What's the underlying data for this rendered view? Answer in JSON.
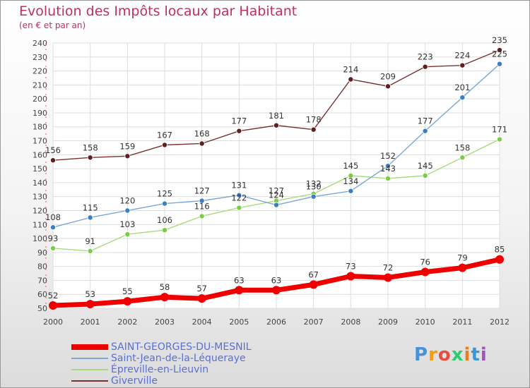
{
  "title": "Evolution des Impôts locaux par Habitant",
  "subtitle": "(en € et par an)",
  "logo": {
    "text": "Proxiti",
    "letters": [
      "P",
      "r",
      "o",
      "x",
      "i",
      "t",
      "i"
    ],
    "colors": [
      "#4a90d9",
      "#f39c12",
      "#e74c3c",
      "#2ecc71",
      "#e67e22",
      "#3498db",
      "#9b59b6"
    ]
  },
  "chart_data": {
    "type": "line",
    "title": "Evolution des Impôts locaux par Habitant",
    "subtitle": "(en € et par an)",
    "xlabel": "",
    "ylabel": "",
    "x": [
      "2000",
      "2001",
      "2002",
      "2003",
      "2004",
      "2005",
      "2006",
      "2007",
      "2008",
      "2009",
      "2010",
      "2011",
      "2012"
    ],
    "ylim": [
      50,
      240
    ],
    "yticks": [
      50,
      60,
      70,
      80,
      90,
      100,
      110,
      120,
      130,
      140,
      150,
      160,
      170,
      180,
      190,
      200,
      210,
      220,
      230,
      240
    ],
    "grid": true,
    "legend_position": "bottom-left",
    "series": [
      {
        "name": "SAINT-GEORGES-DU-MESNIL",
        "color": "#ee0000",
        "marker": "#ee0000",
        "values": [
          52,
          53,
          55,
          58,
          57,
          63,
          63,
          67,
          73,
          72,
          76,
          79,
          85
        ]
      },
      {
        "name": "Saint-Jean-de-la-Léqueraye",
        "color": "#7aa7d6",
        "marker": "#3a7fc4",
        "values": [
          108,
          115,
          120,
          125,
          127,
          131,
          124,
          130,
          134,
          152,
          177,
          201,
          225
        ]
      },
      {
        "name": "Épreville-en-Lieuvin",
        "color": "#a6dc76",
        "marker": "#7acc44",
        "values": [
          93,
          91,
          103,
          106,
          116,
          122,
          127,
          132,
          145,
          143,
          145,
          158,
          171
        ]
      },
      {
        "name": "Giverville",
        "color": "#7a3232",
        "marker": "#5e1f1f",
        "values": [
          156,
          158,
          159,
          167,
          168,
          177,
          181,
          178,
          214,
          209,
          223,
          224,
          235
        ]
      }
    ],
    "data_labels": [
      [
        "52",
        "53",
        "55",
        "58",
        "57",
        "63",
        "63",
        "67",
        "73",
        "72",
        "76",
        "79",
        "85"
      ],
      [
        "108",
        "115",
        "120",
        "125",
        "127",
        "131",
        "124",
        "130",
        "134",
        "152",
        "177",
        "201",
        "225"
      ],
      [
        "93",
        "91",
        "103",
        "106",
        "116",
        "122",
        "127",
        "132",
        "145",
        "143",
        "145",
        "158",
        "171"
      ],
      [
        "156",
        "158",
        "159",
        "167",
        "168",
        "177",
        "181",
        "178",
        "214",
        "209",
        "223",
        "224",
        "235"
      ]
    ]
  }
}
